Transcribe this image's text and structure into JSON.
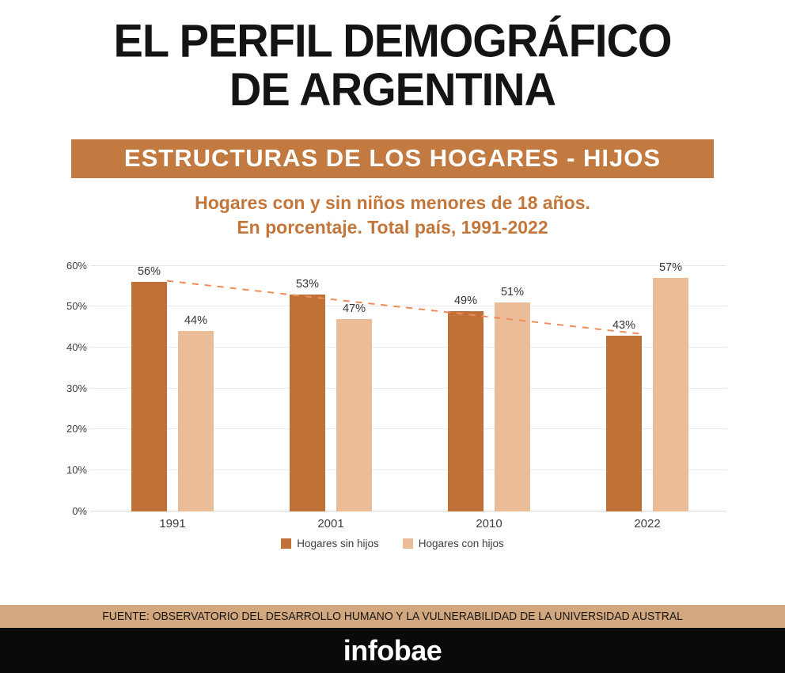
{
  "header": {
    "title_line1": "EL PERFIL DEMOGRÁFICO",
    "title_line2": "DE ARGENTINA",
    "banner": "ESTRUCTURAS DE LOS HOGARES - HIJOS",
    "subtitle_line1": "Hogares con y sin niños menores de 18 años.",
    "subtitle_line2": "En porcentaje. Total país, 1991-2022"
  },
  "footer": {
    "source": "FUENTE: OBSERVATORIO DEL DESARROLLO HUMANO Y LA VULNERABILIDAD DE LA UNIVERSIDAD AUSTRAL",
    "brand": "infobae"
  },
  "colors": {
    "banner_bg": "#c27a40",
    "subtitle_text": "#c4763a",
    "source_band_bg": "#d3a87e",
    "brand_band_bg": "#0a0a0a",
    "grid_line": "#e8e8e8",
    "axis_text": "#3d3d3d",
    "trend_line": "#ef8c58"
  },
  "chart_data": {
    "type": "bar",
    "title": "ESTRUCTURAS DE LOS HOGARES - HIJOS",
    "subtitle": "Hogares con y sin niños menores de 18 años. En porcentaje. Total país, 1991-2022",
    "categories": [
      "1991",
      "2001",
      "2010",
      "2022"
    ],
    "series": [
      {
        "name": "Hogares sin hijos",
        "color": "#c07138",
        "values": [
          56,
          53,
          49,
          43
        ]
      },
      {
        "name": "Hogares con hijos",
        "color": "#eabd98",
        "values": [
          44,
          47,
          51,
          57
        ]
      }
    ],
    "xlabel": "",
    "ylabel": "",
    "ylim": [
      0,
      60
    ],
    "ytick_step": 10,
    "ytick_suffix": "%",
    "value_label_suffix": "%",
    "grid": true,
    "legend_position": "bottom",
    "trendline": {
      "on_series": "Hogares sin hijos",
      "style": "dashed",
      "color": "#ef8c58"
    }
  }
}
